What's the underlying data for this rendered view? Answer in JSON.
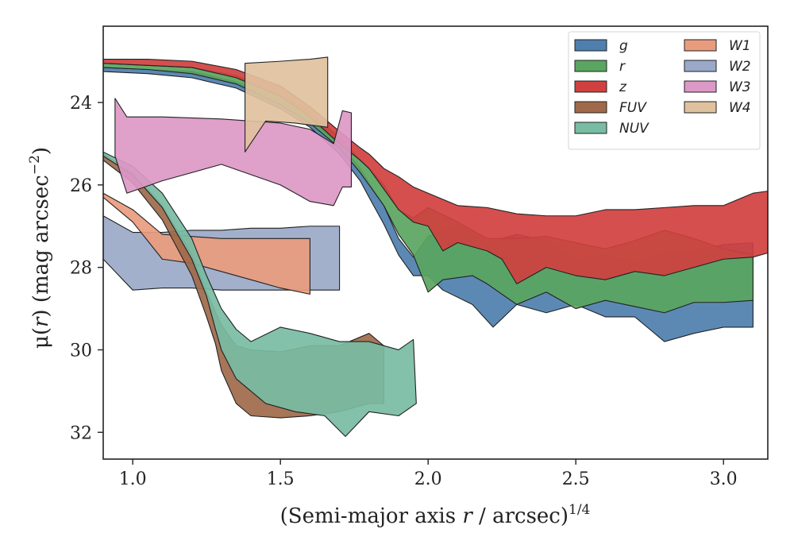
{
  "chart_data": {
    "type": "area",
    "xlabel": {
      "main": "(Semi-major axis ",
      "var": "r",
      "mid": " / arcsec)",
      "sup": "1/4"
    },
    "ylabel": {
      "main": "μ(",
      "var": "r",
      "mid": ") (mag arcsec",
      "sup": "−2",
      "end": ")"
    },
    "xlim": [
      0.9,
      3.15
    ],
    "ylim": [
      32.65,
      22.15
    ],
    "y_inverted": true,
    "xticks": [
      1.0,
      1.5,
      2.0,
      2.5,
      3.0
    ],
    "xtick_labels": [
      "1.0",
      "1.5",
      "2.0",
      "2.5",
      "3.0"
    ],
    "yticks": [
      24,
      26,
      28,
      30,
      32
    ],
    "ytick_labels": [
      "24",
      "26",
      "28",
      "30",
      "32"
    ],
    "grid": false,
    "legend_placement": "top-right",
    "legend_columns": 2,
    "series": [
      {
        "name": "g",
        "color": "#4e7fae",
        "upper": [
          [
            0.9,
            23.15
          ],
          [
            1.05,
            23.2
          ],
          [
            1.2,
            23.25
          ],
          [
            1.35,
            23.5
          ],
          [
            1.5,
            23.95
          ],
          [
            1.6,
            24.4
          ],
          [
            1.7,
            25.0
          ],
          [
            1.77,
            25.6
          ],
          [
            1.8,
            25.95
          ],
          [
            1.85,
            26.5
          ],
          [
            1.9,
            27.3
          ],
          [
            1.95,
            27.75
          ],
          [
            2.0,
            27.25
          ],
          [
            2.1,
            27.0
          ],
          [
            2.2,
            27.4
          ],
          [
            2.3,
            27.2
          ],
          [
            2.4,
            27.35
          ],
          [
            2.5,
            27.8
          ],
          [
            2.6,
            27.7
          ],
          [
            2.7,
            27.9
          ],
          [
            2.8,
            27.65
          ],
          [
            2.9,
            27.6
          ],
          [
            3.0,
            27.45
          ],
          [
            3.1,
            27.4
          ]
        ],
        "lower": [
          [
            0.9,
            23.25
          ],
          [
            1.05,
            23.3
          ],
          [
            1.2,
            23.4
          ],
          [
            1.35,
            23.65
          ],
          [
            1.5,
            24.15
          ],
          [
            1.6,
            24.6
          ],
          [
            1.7,
            25.25
          ],
          [
            1.77,
            25.9
          ],
          [
            1.8,
            26.3
          ],
          [
            1.85,
            26.95
          ],
          [
            1.9,
            27.7
          ],
          [
            1.95,
            28.2
          ],
          [
            2.0,
            28.2
          ],
          [
            2.05,
            28.55
          ],
          [
            2.15,
            28.9
          ],
          [
            2.22,
            29.45
          ],
          [
            2.3,
            28.9
          ],
          [
            2.4,
            29.1
          ],
          [
            2.5,
            28.9
          ],
          [
            2.6,
            29.2
          ],
          [
            2.7,
            29.2
          ],
          [
            2.75,
            29.5
          ],
          [
            2.8,
            29.8
          ],
          [
            2.9,
            29.6
          ],
          [
            3.0,
            29.45
          ],
          [
            3.1,
            29.45
          ]
        ]
      },
      {
        "name": "r",
        "color": "#5aa55f",
        "upper": [
          [
            0.9,
            23.05
          ],
          [
            1.05,
            23.1
          ],
          [
            1.2,
            23.15
          ],
          [
            1.35,
            23.35
          ],
          [
            1.5,
            23.8
          ],
          [
            1.6,
            24.25
          ],
          [
            1.7,
            24.85
          ],
          [
            1.77,
            25.4
          ],
          [
            1.8,
            25.6
          ],
          [
            1.85,
            26.0
          ],
          [
            1.9,
            26.6
          ],
          [
            1.95,
            26.8
          ],
          [
            2.0,
            26.55
          ],
          [
            2.1,
            26.9
          ],
          [
            2.2,
            27.3
          ],
          [
            2.3,
            27.3
          ],
          [
            2.4,
            27.25
          ],
          [
            2.5,
            27.4
          ],
          [
            2.6,
            27.55
          ],
          [
            2.7,
            27.35
          ],
          [
            2.8,
            27.1
          ],
          [
            2.9,
            27.3
          ],
          [
            3.0,
            27.55
          ],
          [
            3.1,
            27.7
          ]
        ],
        "lower": [
          [
            0.9,
            23.15
          ],
          [
            1.05,
            23.2
          ],
          [
            1.2,
            23.3
          ],
          [
            1.35,
            23.55
          ],
          [
            1.5,
            24.05
          ],
          [
            1.6,
            24.5
          ],
          [
            1.7,
            25.1
          ],
          [
            1.77,
            25.7
          ],
          [
            1.8,
            26.0
          ],
          [
            1.85,
            26.5
          ],
          [
            1.9,
            27.2
          ],
          [
            1.95,
            27.7
          ],
          [
            2.0,
            28.6
          ],
          [
            2.05,
            28.3
          ],
          [
            2.15,
            28.2
          ],
          [
            2.2,
            28.4
          ],
          [
            2.3,
            28.9
          ],
          [
            2.4,
            28.6
          ],
          [
            2.5,
            29.0
          ],
          [
            2.6,
            28.8
          ],
          [
            2.7,
            28.95
          ],
          [
            2.8,
            29.1
          ],
          [
            2.9,
            28.85
          ],
          [
            3.0,
            28.85
          ],
          [
            3.1,
            28.8
          ]
        ]
      },
      {
        "name": "z",
        "color": "#d0403f",
        "upper": [
          [
            0.9,
            22.95
          ],
          [
            1.05,
            22.95
          ],
          [
            1.2,
            23.0
          ],
          [
            1.35,
            23.2
          ],
          [
            1.5,
            23.6
          ],
          [
            1.6,
            24.1
          ],
          [
            1.7,
            24.7
          ],
          [
            1.77,
            25.1
          ],
          [
            1.8,
            25.25
          ],
          [
            1.85,
            25.6
          ],
          [
            1.9,
            25.8
          ],
          [
            1.95,
            26.05
          ],
          [
            2.0,
            26.2
          ],
          [
            2.1,
            26.5
          ],
          [
            2.2,
            26.55
          ],
          [
            2.3,
            26.7
          ],
          [
            2.4,
            26.75
          ],
          [
            2.5,
            26.75
          ],
          [
            2.6,
            26.6
          ],
          [
            2.7,
            26.6
          ],
          [
            2.8,
            26.55
          ],
          [
            2.9,
            26.5
          ],
          [
            3.0,
            26.5
          ],
          [
            3.1,
            26.2
          ],
          [
            3.15,
            26.15
          ]
        ],
        "lower": [
          [
            0.9,
            23.05
          ],
          [
            1.05,
            23.1
          ],
          [
            1.2,
            23.15
          ],
          [
            1.35,
            23.4
          ],
          [
            1.5,
            23.85
          ],
          [
            1.6,
            24.35
          ],
          [
            1.7,
            25.0
          ],
          [
            1.77,
            25.4
          ],
          [
            1.8,
            25.6
          ],
          [
            1.85,
            26.1
          ],
          [
            1.9,
            26.6
          ],
          [
            1.95,
            26.9
          ],
          [
            2.0,
            27.0
          ],
          [
            2.05,
            27.6
          ],
          [
            2.1,
            27.4
          ],
          [
            2.2,
            27.6
          ],
          [
            2.25,
            27.8
          ],
          [
            2.3,
            28.4
          ],
          [
            2.4,
            28.0
          ],
          [
            2.5,
            28.2
          ],
          [
            2.6,
            28.3
          ],
          [
            2.7,
            28.1
          ],
          [
            2.8,
            28.2
          ],
          [
            2.9,
            28.0
          ],
          [
            3.0,
            27.8
          ],
          [
            3.1,
            27.75
          ],
          [
            3.15,
            27.65
          ]
        ]
      },
      {
        "name": "FUV",
        "color": "#a0694a",
        "upper": [
          [
            0.9,
            25.25
          ],
          [
            1.0,
            25.7
          ],
          [
            1.1,
            26.5
          ],
          [
            1.2,
            27.7
          ],
          [
            1.25,
            28.6
          ],
          [
            1.3,
            29.4
          ],
          [
            1.35,
            29.9
          ],
          [
            1.4,
            30.0
          ],
          [
            1.5,
            30.05
          ],
          [
            1.6,
            29.9
          ],
          [
            1.7,
            29.9
          ],
          [
            1.8,
            29.6
          ],
          [
            1.85,
            29.9
          ]
        ],
        "lower": [
          [
            0.9,
            25.4
          ],
          [
            1.0,
            25.95
          ],
          [
            1.1,
            26.85
          ],
          [
            1.2,
            28.2
          ],
          [
            1.25,
            29.2
          ],
          [
            1.28,
            29.85
          ],
          [
            1.3,
            30.5
          ],
          [
            1.35,
            31.3
          ],
          [
            1.4,
            31.6
          ],
          [
            1.5,
            31.65
          ],
          [
            1.6,
            31.6
          ],
          [
            1.7,
            31.5
          ],
          [
            1.8,
            31.3
          ],
          [
            1.85,
            31.3
          ]
        ]
      },
      {
        "name": "NUV",
        "color": "#78bca3",
        "upper": [
          [
            0.9,
            25.2
          ],
          [
            1.0,
            25.55
          ],
          [
            1.1,
            26.2
          ],
          [
            1.2,
            27.3
          ],
          [
            1.25,
            28.2
          ],
          [
            1.3,
            29.0
          ],
          [
            1.35,
            29.5
          ],
          [
            1.4,
            29.8
          ],
          [
            1.5,
            29.45
          ],
          [
            1.6,
            29.6
          ],
          [
            1.7,
            29.8
          ],
          [
            1.8,
            29.8
          ],
          [
            1.9,
            30.0
          ],
          [
            1.95,
            29.75
          ]
        ],
        "lower": [
          [
            0.9,
            25.3
          ],
          [
            1.0,
            25.75
          ],
          [
            1.1,
            26.55
          ],
          [
            1.2,
            27.8
          ],
          [
            1.25,
            28.7
          ],
          [
            1.28,
            29.5
          ],
          [
            1.3,
            30.0
          ],
          [
            1.35,
            30.7
          ],
          [
            1.45,
            31.3
          ],
          [
            1.55,
            31.5
          ],
          [
            1.65,
            31.6
          ],
          [
            1.72,
            32.1
          ],
          [
            1.8,
            31.5
          ],
          [
            1.9,
            31.6
          ],
          [
            1.96,
            31.3
          ]
        ]
      },
      {
        "name": "W1",
        "color": "#e99c7d",
        "upper": [
          [
            0.9,
            26.2
          ],
          [
            1.0,
            26.6
          ],
          [
            1.1,
            27.2
          ],
          [
            1.2,
            27.25
          ],
          [
            1.3,
            27.3
          ],
          [
            1.4,
            27.3
          ],
          [
            1.5,
            27.3
          ],
          [
            1.6,
            27.3
          ]
        ],
        "lower": [
          [
            0.9,
            26.3
          ],
          [
            1.0,
            26.9
          ],
          [
            1.1,
            27.8
          ],
          [
            1.2,
            27.9
          ],
          [
            1.3,
            28.1
          ],
          [
            1.4,
            28.3
          ],
          [
            1.5,
            28.5
          ],
          [
            1.6,
            28.65
          ]
        ]
      },
      {
        "name": "W2",
        "color": "#9aa9c8",
        "upper": [
          [
            0.9,
            26.75
          ],
          [
            1.0,
            27.15
          ],
          [
            1.1,
            27.15
          ],
          [
            1.2,
            27.1
          ],
          [
            1.3,
            27.1
          ],
          [
            1.4,
            27.05
          ],
          [
            1.5,
            27.05
          ],
          [
            1.6,
            27.0
          ],
          [
            1.7,
            27.0
          ]
        ],
        "lower": [
          [
            0.9,
            27.8
          ],
          [
            1.0,
            28.55
          ],
          [
            1.1,
            28.5
          ],
          [
            1.2,
            28.5
          ],
          [
            1.3,
            28.55
          ],
          [
            1.4,
            28.55
          ],
          [
            1.5,
            28.55
          ],
          [
            1.6,
            28.55
          ],
          [
            1.7,
            28.55
          ]
        ]
      },
      {
        "name": "W3",
        "color": "#dc98c6",
        "upper": [
          [
            0.94,
            23.9
          ],
          [
            0.98,
            24.35
          ],
          [
            1.1,
            24.35
          ],
          [
            1.3,
            24.4
          ],
          [
            1.5,
            24.5
          ],
          [
            1.6,
            24.65
          ],
          [
            1.68,
            25.0
          ],
          [
            1.71,
            24.2
          ],
          [
            1.74,
            24.25
          ]
        ],
        "lower": [
          [
            0.94,
            25.3
          ],
          [
            0.98,
            26.2
          ],
          [
            1.1,
            25.9
          ],
          [
            1.3,
            25.5
          ],
          [
            1.5,
            26.0
          ],
          [
            1.6,
            26.4
          ],
          [
            1.68,
            26.5
          ],
          [
            1.71,
            26.05
          ],
          [
            1.74,
            26.05
          ]
        ]
      },
      {
        "name": "W4",
        "color": "#dfc19e",
        "upper": [
          [
            1.38,
            23.05
          ],
          [
            1.5,
            23.0
          ],
          [
            1.6,
            22.95
          ],
          [
            1.66,
            22.9
          ]
        ],
        "lower": [
          [
            1.38,
            25.2
          ],
          [
            1.45,
            24.45
          ],
          [
            1.55,
            24.5
          ],
          [
            1.66,
            24.6
          ]
        ]
      }
    ]
  }
}
